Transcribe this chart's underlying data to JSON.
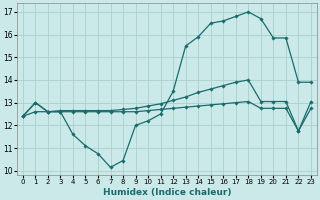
{
  "xlabel": "Humidex (Indice chaleur)",
  "background_color": "#cce9e9",
  "grid_color": "#aacfcf",
  "line_color": "#1a6b6b",
  "xlim": [
    -0.5,
    23.5
  ],
  "ylim": [
    9.8,
    17.4
  ],
  "xticks": [
    0,
    1,
    2,
    3,
    4,
    5,
    6,
    7,
    8,
    9,
    10,
    11,
    12,
    13,
    14,
    15,
    16,
    17,
    18,
    19,
    20,
    21,
    22,
    23
  ],
  "yticks": [
    10,
    11,
    12,
    13,
    14,
    15,
    16,
    17
  ],
  "series": [
    {
      "x": [
        0,
        1,
        2,
        3,
        4,
        5,
        6,
        7,
        8,
        9,
        10,
        11,
        12,
        13,
        14,
        15,
        16,
        17,
        18,
        19,
        20,
        21,
        22,
        23
      ],
      "y": [
        12.4,
        13.0,
        12.6,
        12.6,
        11.6,
        11.1,
        10.75,
        10.15,
        10.45,
        12.0,
        12.2,
        12.5,
        13.5,
        15.5,
        15.9,
        16.5,
        16.6,
        16.8,
        17.0,
        16.7,
        15.85,
        15.85,
        13.9,
        13.9
      ],
      "marker": "D",
      "markersize": 1.8
    },
    {
      "x": [
        0,
        1,
        2,
        3,
        4,
        5,
        6,
        7,
        8,
        9,
        10,
        11,
        12,
        13,
        14,
        15,
        16,
        17,
        18,
        19,
        20,
        21,
        22,
        23
      ],
      "y": [
        12.4,
        13.0,
        12.6,
        12.65,
        12.65,
        12.65,
        12.65,
        12.65,
        12.7,
        12.75,
        12.85,
        12.95,
        13.1,
        13.25,
        13.45,
        13.6,
        13.75,
        13.9,
        14.0,
        13.05,
        13.05,
        13.05,
        11.75,
        13.05
      ],
      "marker": "D",
      "markersize": 1.8
    },
    {
      "x": [
        0,
        1,
        2,
        3,
        4,
        5,
        6,
        7,
        8,
        9,
        10,
        11,
        12,
        13,
        14,
        15,
        16,
        17,
        18,
        19,
        20,
        21,
        22,
        23
      ],
      "y": [
        12.4,
        12.6,
        12.6,
        12.6,
        12.6,
        12.6,
        12.6,
        12.6,
        12.6,
        12.6,
        12.65,
        12.7,
        12.75,
        12.8,
        12.85,
        12.9,
        12.95,
        13.0,
        13.05,
        12.75,
        12.75,
        12.75,
        11.75,
        12.75
      ],
      "marker": "D",
      "markersize": 1.8
    }
  ]
}
